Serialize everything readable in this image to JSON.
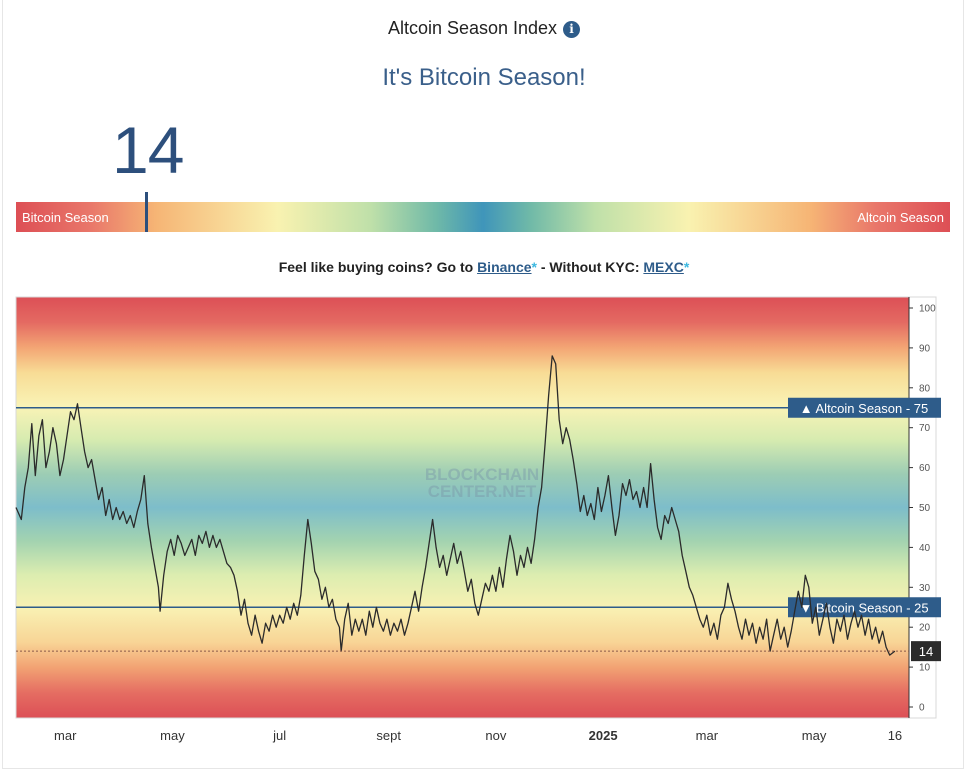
{
  "header": {
    "title": "Altcoin Season Index",
    "info_icon": "info-icon",
    "status": "It's Bitcoin Season!",
    "current_value": "14"
  },
  "gauge": {
    "left_label": "Bitcoin Season",
    "right_label": "Altcoin Season",
    "value": 14,
    "range": [
      0,
      100
    ]
  },
  "promo": {
    "prefix": "Feel like buying coins? Go to",
    "link1": "Binance",
    "star": "*",
    "middle": "- Without KYC:",
    "link2": "MEXC"
  },
  "chart_data": {
    "type": "line",
    "title": "",
    "xlabel": "",
    "ylabel": "",
    "ylim": [
      0,
      100
    ],
    "y_ticks": [
      "0",
      "10",
      "20",
      "30",
      "40",
      "50",
      "60",
      "70",
      "80",
      "90",
      "100"
    ],
    "x_ticks": [
      {
        "label": "mar",
        "date": "2024-03-01",
        "bold": false
      },
      {
        "label": "may",
        "date": "2024-05-01",
        "bold": false
      },
      {
        "label": "jul",
        "date": "2024-07-01",
        "bold": false
      },
      {
        "label": "sept",
        "date": "2024-09-01",
        "bold": false
      },
      {
        "label": "nov",
        "date": "2024-11-01",
        "bold": false
      },
      {
        "label": "2025",
        "date": "2025-01-01",
        "bold": true
      },
      {
        "label": "mar",
        "date": "2025-03-01",
        "bold": false
      },
      {
        "label": "may",
        "date": "2025-05-01",
        "bold": false
      },
      {
        "label": "16",
        "date": "2025-06-16",
        "bold": false
      }
    ],
    "x_range": [
      "2024-02-02",
      "2025-06-24"
    ],
    "watermark": [
      "BLOCKCHAIN",
      "CENTER.NET"
    ],
    "thresholds": [
      {
        "name": "altcoin-season",
        "label": "▲ Altcoin Season - 75",
        "value": 75,
        "color": "#2e5c8a"
      },
      {
        "name": "bitcoin-season",
        "label": "▼ Bitcoin Season - 25",
        "value": 25,
        "color": "#2e5c8a"
      }
    ],
    "current": {
      "value": 14,
      "label": "14",
      "date": "2025-06-16"
    },
    "series": [
      {
        "name": "",
        "color": "#2b2b2b",
        "points": [
          [
            "2024-02-02",
            50
          ],
          [
            "2024-02-05",
            47
          ],
          [
            "2024-02-07",
            55
          ],
          [
            "2024-02-09",
            60
          ],
          [
            "2024-02-11",
            71
          ],
          [
            "2024-02-13",
            58
          ],
          [
            "2024-02-15",
            68
          ],
          [
            "2024-02-17",
            72
          ],
          [
            "2024-02-19",
            60
          ],
          [
            "2024-02-21",
            64
          ],
          [
            "2024-02-23",
            70
          ],
          [
            "2024-02-25",
            66
          ],
          [
            "2024-02-27",
            58
          ],
          [
            "2024-02-29",
            62
          ],
          [
            "2024-03-02",
            68
          ],
          [
            "2024-03-04",
            74
          ],
          [
            "2024-03-06",
            72
          ],
          [
            "2024-03-08",
            76
          ],
          [
            "2024-03-10",
            70
          ],
          [
            "2024-03-12",
            64
          ],
          [
            "2024-03-14",
            60
          ],
          [
            "2024-03-16",
            62
          ],
          [
            "2024-03-18",
            57
          ],
          [
            "2024-03-20",
            52
          ],
          [
            "2024-03-22",
            55
          ],
          [
            "2024-03-24",
            48
          ],
          [
            "2024-03-26",
            52
          ],
          [
            "2024-03-28",
            47
          ],
          [
            "2024-03-30",
            50
          ],
          [
            "2024-04-01",
            47
          ],
          [
            "2024-04-03",
            49
          ],
          [
            "2024-04-05",
            46
          ],
          [
            "2024-04-07",
            48
          ],
          [
            "2024-04-09",
            45
          ],
          [
            "2024-04-11",
            49
          ],
          [
            "2024-04-13",
            52
          ],
          [
            "2024-04-15",
            58
          ],
          [
            "2024-04-17",
            46
          ],
          [
            "2024-04-19",
            40
          ],
          [
            "2024-04-21",
            35
          ],
          [
            "2024-04-23",
            30
          ],
          [
            "2024-04-24",
            24
          ],
          [
            "2024-04-26",
            33
          ],
          [
            "2024-04-28",
            39
          ],
          [
            "2024-04-30",
            42
          ],
          [
            "2024-05-02",
            38
          ],
          [
            "2024-05-04",
            43
          ],
          [
            "2024-05-06",
            41
          ],
          [
            "2024-05-08",
            38
          ],
          [
            "2024-05-10",
            40
          ],
          [
            "2024-05-12",
            42
          ],
          [
            "2024-05-14",
            38
          ],
          [
            "2024-05-16",
            43
          ],
          [
            "2024-05-18",
            41
          ],
          [
            "2024-05-20",
            44
          ],
          [
            "2024-05-22",
            40
          ],
          [
            "2024-05-24",
            43
          ],
          [
            "2024-05-26",
            40
          ],
          [
            "2024-05-28",
            42
          ],
          [
            "2024-05-30",
            39
          ],
          [
            "2024-06-01",
            36
          ],
          [
            "2024-06-03",
            35
          ],
          [
            "2024-06-05",
            33
          ],
          [
            "2024-06-07",
            29
          ],
          [
            "2024-06-09",
            23
          ],
          [
            "2024-06-11",
            27
          ],
          [
            "2024-06-13",
            21
          ],
          [
            "2024-06-15",
            18
          ],
          [
            "2024-06-17",
            23
          ],
          [
            "2024-06-19",
            19
          ],
          [
            "2024-06-21",
            16
          ],
          [
            "2024-06-23",
            21
          ],
          [
            "2024-06-25",
            19
          ],
          [
            "2024-06-27",
            23
          ],
          [
            "2024-06-29",
            20
          ],
          [
            "2024-07-01",
            23
          ],
          [
            "2024-07-03",
            21
          ],
          [
            "2024-07-05",
            25
          ],
          [
            "2024-07-07",
            22
          ],
          [
            "2024-07-09",
            26
          ],
          [
            "2024-07-11",
            23
          ],
          [
            "2024-07-13",
            28
          ],
          [
            "2024-07-15",
            38
          ],
          [
            "2024-07-17",
            47
          ],
          [
            "2024-07-19",
            41
          ],
          [
            "2024-07-21",
            34
          ],
          [
            "2024-07-23",
            32
          ],
          [
            "2024-07-25",
            27
          ],
          [
            "2024-07-27",
            30
          ],
          [
            "2024-07-29",
            25
          ],
          [
            "2024-07-31",
            27
          ],
          [
            "2024-08-02",
            22
          ],
          [
            "2024-08-04",
            20
          ],
          [
            "2024-08-05",
            14
          ],
          [
            "2024-08-07",
            22
          ],
          [
            "2024-08-09",
            26
          ],
          [
            "2024-08-11",
            18
          ],
          [
            "2024-08-13",
            22
          ],
          [
            "2024-08-15",
            19
          ],
          [
            "2024-08-17",
            22
          ],
          [
            "2024-08-19",
            18
          ],
          [
            "2024-08-21",
            24
          ],
          [
            "2024-08-23",
            20
          ],
          [
            "2024-08-25",
            25
          ],
          [
            "2024-08-27",
            21
          ],
          [
            "2024-08-29",
            19
          ],
          [
            "2024-08-31",
            22
          ],
          [
            "2024-09-02",
            18
          ],
          [
            "2024-09-04",
            21
          ],
          [
            "2024-09-06",
            19
          ],
          [
            "2024-09-08",
            22
          ],
          [
            "2024-09-10",
            18
          ],
          [
            "2024-09-12",
            21
          ],
          [
            "2024-09-14",
            25
          ],
          [
            "2024-09-16",
            29
          ],
          [
            "2024-09-18",
            24
          ],
          [
            "2024-09-20",
            30
          ],
          [
            "2024-09-22",
            35
          ],
          [
            "2024-09-24",
            41
          ],
          [
            "2024-09-26",
            47
          ],
          [
            "2024-09-28",
            40
          ],
          [
            "2024-09-30",
            35
          ],
          [
            "2024-10-02",
            38
          ],
          [
            "2024-10-04",
            33
          ],
          [
            "2024-10-06",
            37
          ],
          [
            "2024-10-08",
            41
          ],
          [
            "2024-10-10",
            36
          ],
          [
            "2024-10-12",
            39
          ],
          [
            "2024-10-14",
            34
          ],
          [
            "2024-10-16",
            29
          ],
          [
            "2024-10-18",
            32
          ],
          [
            "2024-10-20",
            26
          ],
          [
            "2024-10-22",
            23
          ],
          [
            "2024-10-24",
            27
          ],
          [
            "2024-10-26",
            31
          ],
          [
            "2024-10-28",
            29
          ],
          [
            "2024-10-30",
            33
          ],
          [
            "2024-11-01",
            29
          ],
          [
            "2024-11-03",
            35
          ],
          [
            "2024-11-05",
            30
          ],
          [
            "2024-11-07",
            37
          ],
          [
            "2024-11-09",
            43
          ],
          [
            "2024-11-11",
            39
          ],
          [
            "2024-11-13",
            33
          ],
          [
            "2024-11-15",
            38
          ],
          [
            "2024-11-17",
            35
          ],
          [
            "2024-11-19",
            40
          ],
          [
            "2024-11-21",
            36
          ],
          [
            "2024-11-23",
            42
          ],
          [
            "2024-11-25",
            50
          ],
          [
            "2024-11-27",
            55
          ],
          [
            "2024-11-29",
            66
          ],
          [
            "2024-12-01",
            78
          ],
          [
            "2024-12-03",
            88
          ],
          [
            "2024-12-05",
            86
          ],
          [
            "2024-12-07",
            72
          ],
          [
            "2024-12-09",
            66
          ],
          [
            "2024-12-11",
            70
          ],
          [
            "2024-12-13",
            67
          ],
          [
            "2024-12-15",
            62
          ],
          [
            "2024-12-17",
            56
          ],
          [
            "2024-12-19",
            49
          ],
          [
            "2024-12-21",
            53
          ],
          [
            "2024-12-23",
            48
          ],
          [
            "2024-12-25",
            51
          ],
          [
            "2024-12-27",
            47
          ],
          [
            "2024-12-29",
            55
          ],
          [
            "2024-12-31",
            49
          ],
          [
            "2025-01-02",
            53
          ],
          [
            "2025-01-04",
            58
          ],
          [
            "2025-01-06",
            50
          ],
          [
            "2025-01-08",
            43
          ],
          [
            "2025-01-10",
            48
          ],
          [
            "2025-01-12",
            56
          ],
          [
            "2025-01-14",
            53
          ],
          [
            "2025-01-16",
            57
          ],
          [
            "2025-01-18",
            52
          ],
          [
            "2025-01-20",
            54
          ],
          [
            "2025-01-22",
            50
          ],
          [
            "2025-01-24",
            55
          ],
          [
            "2025-01-26",
            50
          ],
          [
            "2025-01-28",
            61
          ],
          [
            "2025-01-30",
            52
          ],
          [
            "2025-02-01",
            45
          ],
          [
            "2025-02-03",
            42
          ],
          [
            "2025-02-05",
            48
          ],
          [
            "2025-02-07",
            46
          ],
          [
            "2025-02-09",
            50
          ],
          [
            "2025-02-11",
            47
          ],
          [
            "2025-02-13",
            44
          ],
          [
            "2025-02-15",
            38
          ],
          [
            "2025-02-17",
            34
          ],
          [
            "2025-02-19",
            30
          ],
          [
            "2025-02-21",
            28
          ],
          [
            "2025-02-23",
            25
          ],
          [
            "2025-02-25",
            22
          ],
          [
            "2025-02-27",
            20
          ],
          [
            "2025-03-01",
            23
          ],
          [
            "2025-03-03",
            18
          ],
          [
            "2025-03-05",
            21
          ],
          [
            "2025-03-07",
            17
          ],
          [
            "2025-03-09",
            23
          ],
          [
            "2025-03-11",
            25
          ],
          [
            "2025-03-13",
            31
          ],
          [
            "2025-03-15",
            27
          ],
          [
            "2025-03-17",
            24
          ],
          [
            "2025-03-19",
            20
          ],
          [
            "2025-03-21",
            17
          ],
          [
            "2025-03-23",
            22
          ],
          [
            "2025-03-25",
            18
          ],
          [
            "2025-03-27",
            21
          ],
          [
            "2025-03-29",
            16
          ],
          [
            "2025-03-31",
            20
          ],
          [
            "2025-04-02",
            17
          ],
          [
            "2025-04-04",
            22
          ],
          [
            "2025-04-06",
            14
          ],
          [
            "2025-04-08",
            18
          ],
          [
            "2025-04-10",
            22
          ],
          [
            "2025-04-12",
            17
          ],
          [
            "2025-04-14",
            20
          ],
          [
            "2025-04-16",
            15
          ],
          [
            "2025-04-18",
            19
          ],
          [
            "2025-04-20",
            24
          ],
          [
            "2025-04-22",
            29
          ],
          [
            "2025-04-24",
            25
          ],
          [
            "2025-04-26",
            33
          ],
          [
            "2025-04-28",
            30
          ],
          [
            "2025-04-30",
            21
          ],
          [
            "2025-05-02",
            25
          ],
          [
            "2025-05-04",
            18
          ],
          [
            "2025-05-06",
            22
          ],
          [
            "2025-05-08",
            26
          ],
          [
            "2025-05-10",
            20
          ],
          [
            "2025-05-12",
            16
          ],
          [
            "2025-05-14",
            22
          ],
          [
            "2025-05-16",
            19
          ],
          [
            "2025-05-18",
            23
          ],
          [
            "2025-05-20",
            17
          ],
          [
            "2025-05-22",
            21
          ],
          [
            "2025-05-24",
            24
          ],
          [
            "2025-05-26",
            20
          ],
          [
            "2025-05-28",
            23
          ],
          [
            "2025-05-30",
            18
          ],
          [
            "2025-06-01",
            22
          ],
          [
            "2025-06-03",
            17
          ],
          [
            "2025-06-05",
            20
          ],
          [
            "2025-06-07",
            16
          ],
          [
            "2025-06-09",
            19
          ],
          [
            "2025-06-11",
            15
          ],
          [
            "2025-06-13",
            13
          ],
          [
            "2025-06-16",
            14
          ]
        ]
      }
    ]
  }
}
